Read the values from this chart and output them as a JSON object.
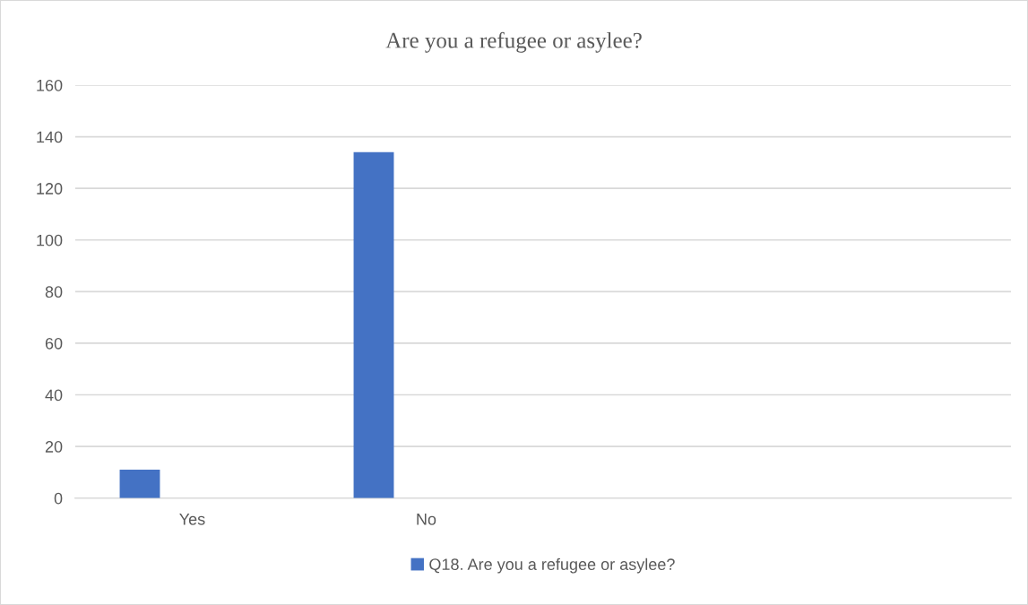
{
  "chart_data": {
    "type": "bar",
    "title": "Are you a refugee or asylee?",
    "categories": [
      "Yes",
      "No",
      null,
      null
    ],
    "series": [
      {
        "name": "Q18. Are you a refugee or asylee?",
        "color": "#4472c4",
        "values": [
          11,
          134,
          null,
          null
        ]
      }
    ],
    "ylim": [
      0,
      160
    ],
    "yticks": [
      0,
      20,
      40,
      60,
      80,
      100,
      120,
      140,
      160
    ],
    "grid": "y",
    "legend": "bottom"
  }
}
